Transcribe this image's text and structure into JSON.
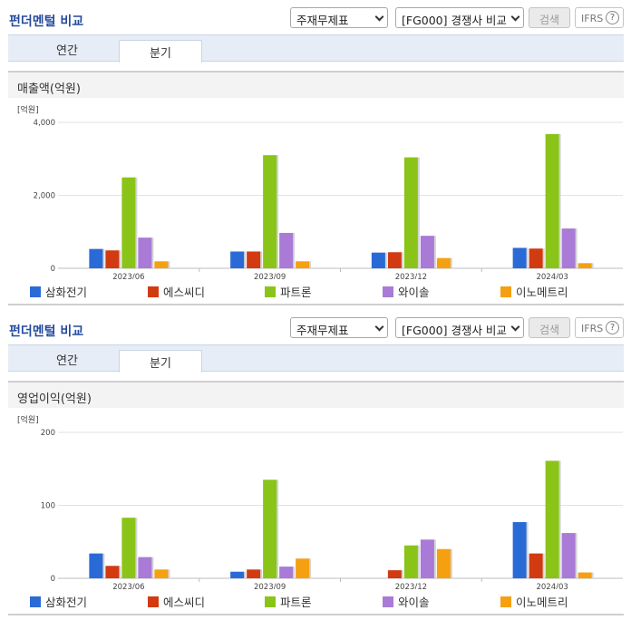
{
  "panels": [
    {
      "header": {
        "title": "펀더멘털 비교",
        "select1": "주재무제표",
        "select2": "[FG000] 경쟁사 비교",
        "search_label": "검색",
        "ifrs_label": "IFRS",
        "help": "?"
      },
      "tabs": [
        {
          "label": "연간"
        },
        {
          "label": "분기"
        }
      ],
      "subtitle": "매출액(억원)",
      "chart_data": {
        "type": "bar",
        "title": "매출액(억원)",
        "unit_label": "[억원]",
        "categories": [
          "2023/06",
          "2023/09",
          "2023/12",
          "2024/03"
        ],
        "ylim": [
          0,
          4000
        ],
        "yticks": [
          0,
          2000,
          4000
        ],
        "ytick_labels": [
          "0",
          "2,000",
          "4,000"
        ],
        "grid": true,
        "legend_position": "bottom",
        "series": [
          {
            "name": "삼화전기",
            "color": "#2a6ad6",
            "values": [
              530,
              460,
              430,
              560
            ]
          },
          {
            "name": "에스씨디",
            "color": "#d23a12",
            "values": [
              490,
              460,
              440,
              540
            ]
          },
          {
            "name": "파트론",
            "color": "#8ac418",
            "values": [
              2490,
              3100,
              3040,
              3680
            ]
          },
          {
            "name": "와이솔",
            "color": "#a97ad6",
            "values": [
              840,
              970,
              890,
              1090
            ]
          },
          {
            "name": "이노메트리",
            "color": "#f5a010",
            "values": [
              190,
              190,
              280,
              140
            ]
          }
        ]
      }
    },
    {
      "header": {
        "title": "펀더멘털 비교",
        "select1": "주재무제표",
        "select2": "[FG000] 경쟁사 비교",
        "search_label": "검색",
        "ifrs_label": "IFRS",
        "help": "?"
      },
      "tabs": [
        {
          "label": "연간"
        },
        {
          "label": "분기"
        }
      ],
      "subtitle": "영업이익(억원)",
      "chart_data": {
        "type": "bar",
        "title": "영업이익(억원)",
        "unit_label": "[억원]",
        "categories": [
          "2023/06",
          "2023/09",
          "2023/12",
          "2024/03"
        ],
        "ylim": [
          0,
          200
        ],
        "yticks": [
          0,
          100,
          200
        ],
        "ytick_labels": [
          "0",
          "100",
          "200"
        ],
        "grid": true,
        "legend_position": "bottom",
        "series": [
          {
            "name": "삼화전기",
            "color": "#2a6ad6",
            "values": [
              34,
              9,
              0,
              77
            ]
          },
          {
            "name": "에스씨디",
            "color": "#d23a12",
            "values": [
              17,
              12,
              11,
              34
            ]
          },
          {
            "name": "파트론",
            "color": "#8ac418",
            "values": [
              83,
              135,
              45,
              161
            ]
          },
          {
            "name": "와이솔",
            "color": "#a97ad6",
            "values": [
              29,
              16,
              53,
              62
            ]
          },
          {
            "name": "이노메트리",
            "color": "#f5a010",
            "values": [
              12,
              27,
              40,
              8
            ]
          }
        ]
      }
    }
  ]
}
